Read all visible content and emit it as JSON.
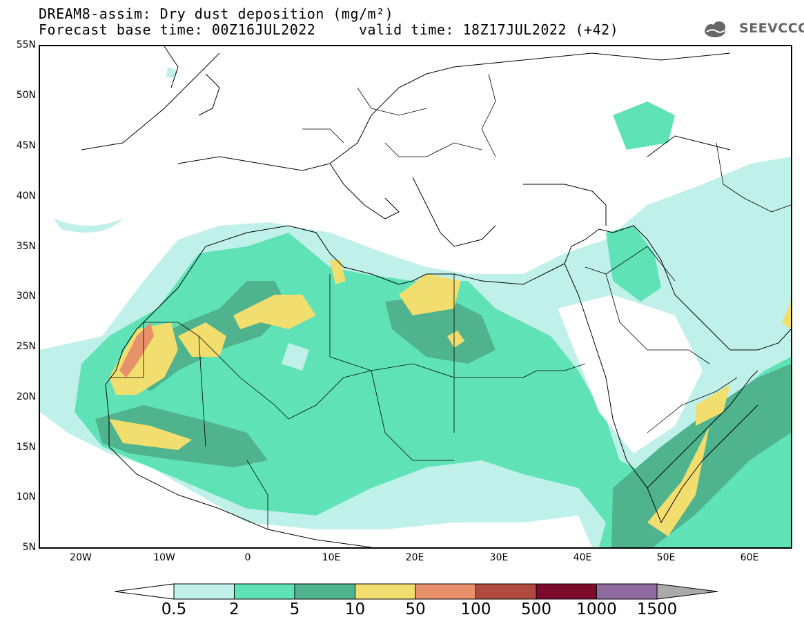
{
  "header": {
    "title_line1": "DREAM8-assim: Dry dust deposition (mg/m²)",
    "title_line2": "Forecast base time: 00Z16JUL2022     valid time: 18Z17JUL2022 (+42)"
  },
  "logo": {
    "text": "SEEVCCC",
    "icon": "cloud-logo-icon"
  },
  "map": {
    "lat_labels": [
      "55N",
      "50N",
      "45N",
      "40N",
      "35N",
      "30N",
      "25N",
      "20N",
      "15N",
      "10N",
      "5N"
    ],
    "lon_labels": [
      "20W",
      "10W",
      "0",
      "10E",
      "20E",
      "30E",
      "40E",
      "50E",
      "60E"
    ],
    "region": "North Africa, Europe, Middle East"
  },
  "legend": {
    "levels": [
      "0.5",
      "2",
      "5",
      "10",
      "50",
      "100",
      "500",
      "1000",
      "1500"
    ],
    "colors": [
      "#bff0ea",
      "#5fe3b6",
      "#4fb38e",
      "#f2de6e",
      "#e8906a",
      "#b04a3e",
      "#7d0a2a",
      "#8e6aa0",
      "#aaaaaa"
    ]
  }
}
